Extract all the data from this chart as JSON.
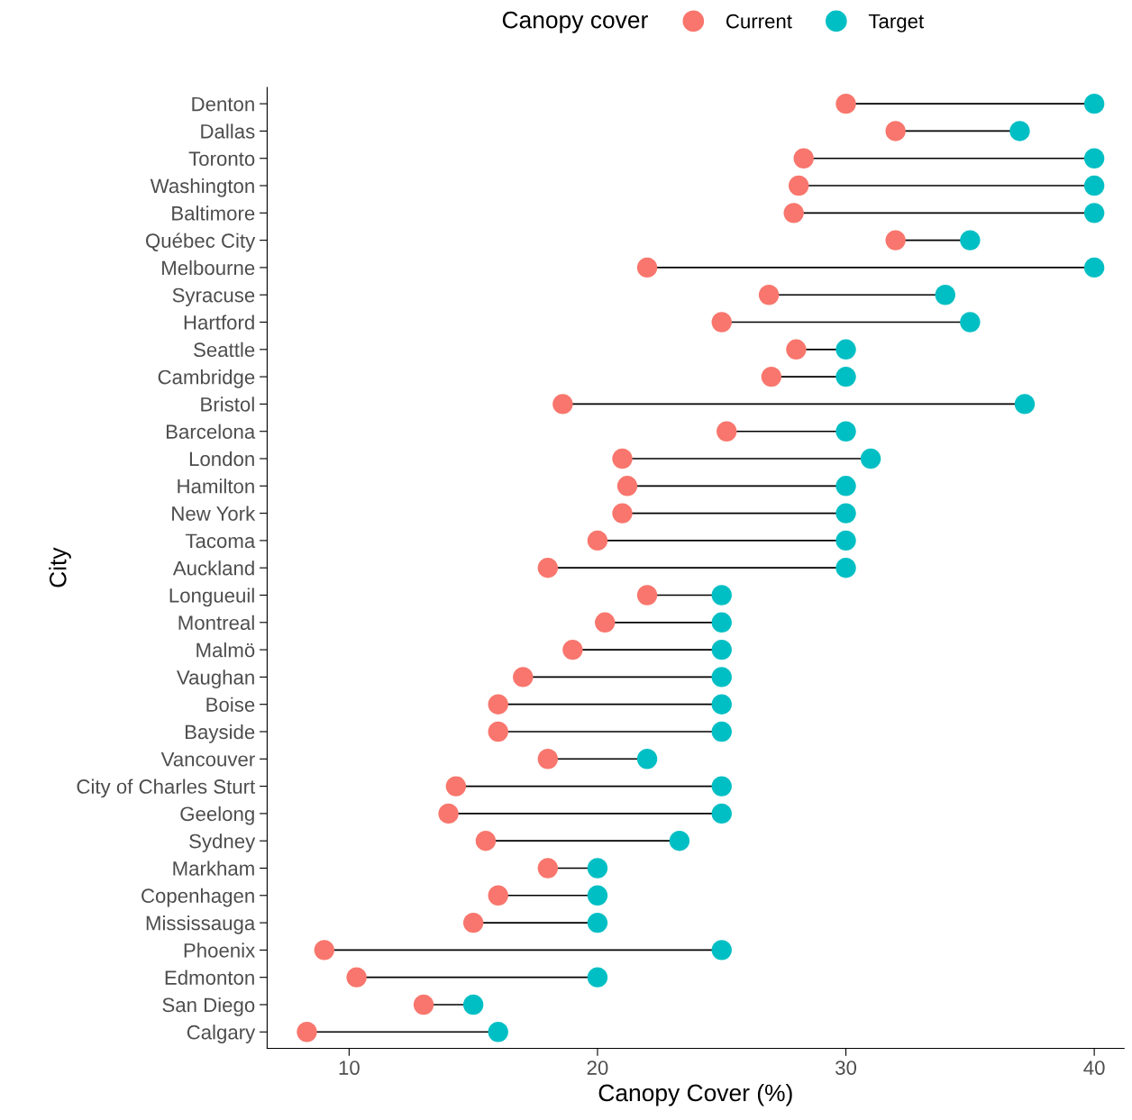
{
  "chart_data": {
    "type": "scatter",
    "xlabel": "Canopy Cover (%)",
    "ylabel": "City",
    "legend_title": "Canopy cover",
    "legend": "top",
    "grid": false,
    "marker": "circle",
    "orientation": "horizontal",
    "categories": [
      "Denton",
      "Dallas",
      "Toronto",
      "Washington",
      "Baltimore",
      "Québec City",
      "Melbourne",
      "Syracuse",
      "Hartford",
      "Seattle",
      "Cambridge",
      "Bristol",
      "Barcelona",
      "London",
      "Hamilton",
      "New York",
      "Tacoma",
      "Auckland",
      "Longueuil",
      "Montreal",
      "Malmö",
      "Vaughan",
      "Boise",
      "Bayside",
      "Vancouver",
      "City of Charles Sturt",
      "Geelong",
      "Sydney",
      "Markham",
      "Copenhagen",
      "Mississauga",
      "Phoenix",
      "Edmonton",
      "San Diego",
      "Calgary"
    ],
    "series": [
      {
        "name": "Current",
        "color": "#f8766d",
        "values": [
          30,
          32,
          28.3,
          28.1,
          27.9,
          32,
          22,
          26.9,
          25,
          28,
          27,
          18.6,
          25.2,
          21,
          21.2,
          21,
          20,
          18,
          22,
          20.3,
          19,
          17,
          16,
          16,
          18,
          14.3,
          14,
          15.5,
          18,
          16,
          15,
          9,
          10.3,
          13,
          8.3
        ]
      },
      {
        "name": "Target",
        "color": "#00bfc4",
        "values": [
          40,
          37,
          40,
          40,
          40,
          35,
          40,
          34,
          35,
          30,
          30,
          37.2,
          30,
          31,
          30,
          30,
          30,
          30,
          25,
          25,
          25,
          25,
          25,
          25,
          22,
          25,
          25,
          23.3,
          20,
          20,
          20,
          25,
          20,
          15,
          16
        ]
      }
    ],
    "xlim": [
      6.7,
      41.2
    ],
    "xticks": [
      10,
      20,
      30,
      40
    ]
  }
}
